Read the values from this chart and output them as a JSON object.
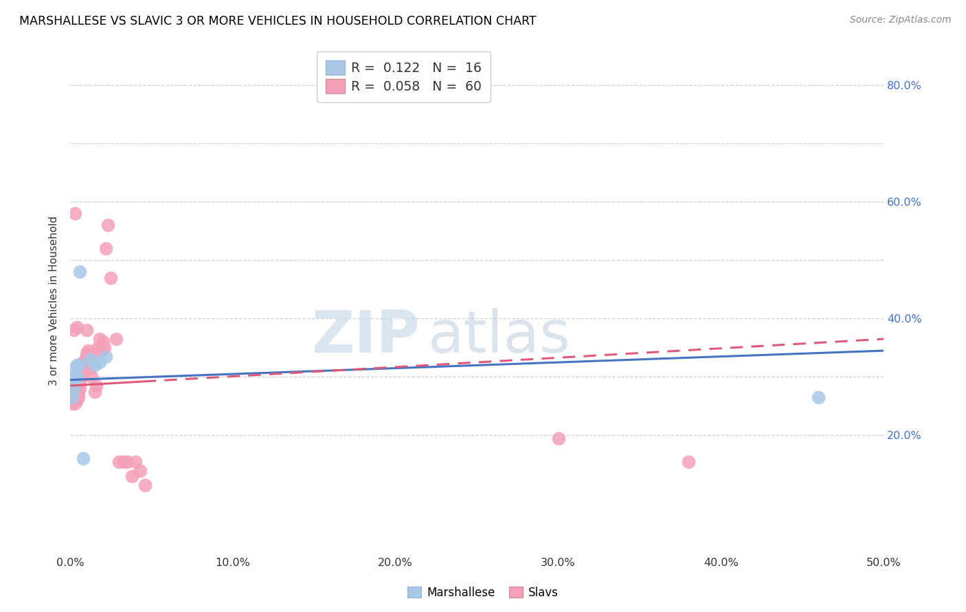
{
  "title": "MARSHALLESE VS SLAVIC 3 OR MORE VEHICLES IN HOUSEHOLD CORRELATION CHART",
  "source": "Source: ZipAtlas.com",
  "ylabel": "3 or more Vehicles in Household",
  "xlim": [
    0.0,
    0.5
  ],
  "ylim": [
    0.0,
    0.86
  ],
  "xticks": [
    0.0,
    0.1,
    0.2,
    0.3,
    0.4,
    0.5
  ],
  "xtick_labels": [
    "0.0%",
    "10.0%",
    "20.0%",
    "30.0%",
    "40.0%",
    "50.0%"
  ],
  "yticks_grid": [
    0.2,
    0.3,
    0.4,
    0.5,
    0.6,
    0.7,
    0.8
  ],
  "yticks_right": [
    0.2,
    0.4,
    0.6,
    0.8
  ],
  "ytick_right_labels": [
    "20.0%",
    "40.0%",
    "60.0%",
    "80.0%"
  ],
  "legend_r_marshallese": "0.122",
  "legend_n_marshallese": "16",
  "legend_r_slavic": "0.058",
  "legend_n_slavic": "60",
  "marshallese_color": "#a8c8e8",
  "slavic_color": "#f4a0b8",
  "trendline_marshallese_color": "#4472c4",
  "trendline_slavic_color": "#e05878",
  "marshallese_x": [
    0.001,
    0.001,
    0.002,
    0.002,
    0.003,
    0.003,
    0.004,
    0.004,
    0.005,
    0.006,
    0.008,
    0.012,
    0.015,
    0.018,
    0.022,
    0.46
  ],
  "marshallese_y": [
    0.265,
    0.295,
    0.28,
    0.3,
    0.295,
    0.315,
    0.3,
    0.32,
    0.32,
    0.48,
    0.16,
    0.33,
    0.32,
    0.325,
    0.335,
    0.265
  ],
  "slavic_x": [
    0.001,
    0.001,
    0.001,
    0.001,
    0.002,
    0.002,
    0.002,
    0.002,
    0.002,
    0.003,
    0.003,
    0.003,
    0.003,
    0.003,
    0.003,
    0.004,
    0.004,
    0.004,
    0.004,
    0.004,
    0.005,
    0.005,
    0.005,
    0.005,
    0.005,
    0.006,
    0.006,
    0.006,
    0.007,
    0.007,
    0.008,
    0.008,
    0.009,
    0.009,
    0.01,
    0.01,
    0.011,
    0.012,
    0.013,
    0.014,
    0.015,
    0.016,
    0.017,
    0.018,
    0.019,
    0.02,
    0.021,
    0.022,
    0.023,
    0.025,
    0.028,
    0.03,
    0.033,
    0.035,
    0.038,
    0.04,
    0.043,
    0.046,
    0.3,
    0.38
  ],
  "slavic_y": [
    0.255,
    0.27,
    0.28,
    0.295,
    0.265,
    0.27,
    0.275,
    0.285,
    0.38,
    0.255,
    0.265,
    0.275,
    0.28,
    0.3,
    0.58,
    0.26,
    0.275,
    0.285,
    0.295,
    0.385,
    0.265,
    0.275,
    0.28,
    0.295,
    0.31,
    0.28,
    0.29,
    0.32,
    0.3,
    0.315,
    0.32,
    0.325,
    0.32,
    0.33,
    0.34,
    0.38,
    0.345,
    0.315,
    0.3,
    0.33,
    0.275,
    0.285,
    0.35,
    0.365,
    0.345,
    0.36,
    0.35,
    0.52,
    0.56,
    0.47,
    0.365,
    0.155,
    0.155,
    0.155,
    0.13,
    0.155,
    0.14,
    0.115,
    0.195,
    0.155
  ],
  "trendline_marshallese_x0": 0.0,
  "trendline_marshallese_x1": 0.5,
  "trendline_marshallese_y0": 0.295,
  "trendline_marshallese_y1": 0.345,
  "trendline_slavic_x0": 0.0,
  "trendline_slavic_x1": 0.5,
  "trendline_slavic_y0": 0.285,
  "trendline_slavic_y1": 0.365,
  "trendline_slavic_solid_end_x": 0.045,
  "watermark_zip": "ZIP",
  "watermark_atlas": "atlas"
}
